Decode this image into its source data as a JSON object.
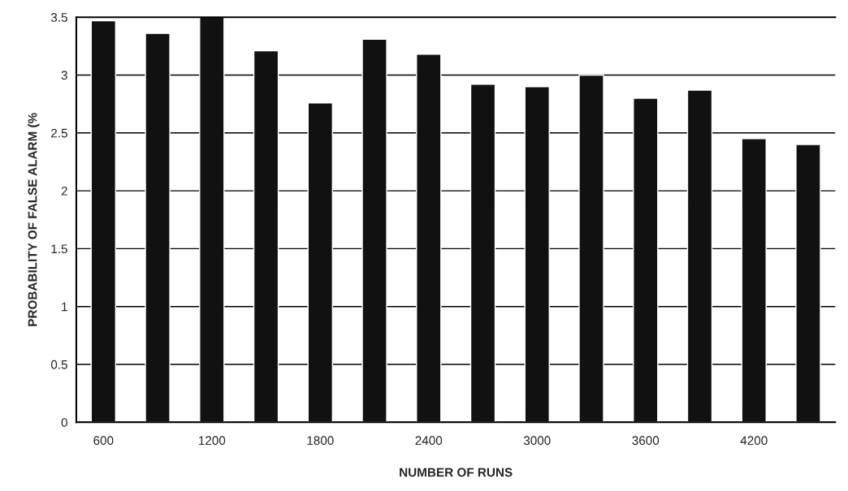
{
  "chart_data": {
    "type": "bar",
    "xlabel": "NUMBER OF RUNS",
    "ylabel": "PROBABILITY OF FALSE ALARM (%",
    "categories": [
      "600",
      null,
      "1200",
      null,
      "1800",
      null,
      "2400",
      null,
      "3000",
      null,
      "3600",
      null,
      "4200",
      null
    ],
    "values": [
      3.47,
      3.36,
      3.5,
      3.21,
      2.76,
      3.31,
      3.18,
      2.92,
      2.9,
      3.0,
      2.8,
      2.87,
      2.45,
      2.4
    ],
    "color": "#111111",
    "ylim": [
      0,
      3.5
    ],
    "yticks": [
      0,
      0.5,
      1,
      1.5,
      2,
      2.5,
      3,
      3.5
    ],
    "grid": "y",
    "legend": false
  }
}
